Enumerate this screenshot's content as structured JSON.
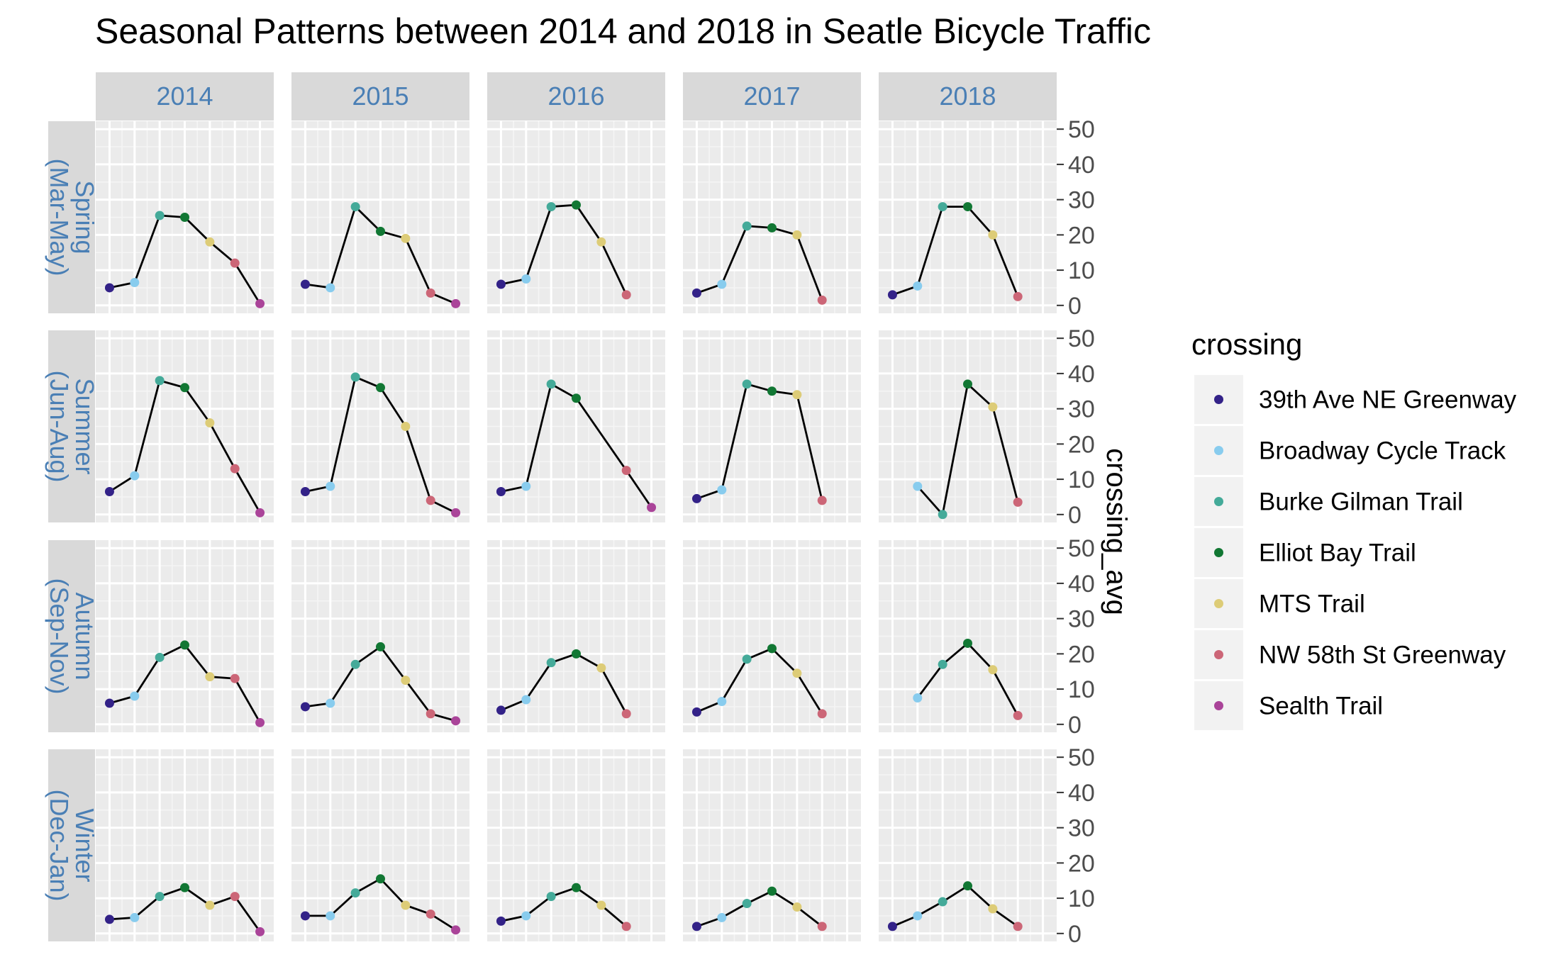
{
  "chart_data": {
    "type": "line",
    "title": "Seasonal Patterns between 2014 and 2018 in Seatle Bicycle Traffic",
    "ylabel": "crossing_avg",
    "xlabel": "",
    "ylim": [
      0,
      50
    ],
    "yticks": [
      0,
      10,
      20,
      30,
      40,
      50
    ],
    "grid": true,
    "legend_title": "crossing",
    "legend_position": "right",
    "years": [
      "2014",
      "2015",
      "2016",
      "2017",
      "2018"
    ],
    "seasons": [
      "Spring\n(Mar-May)",
      "Summer\n(Jun-Aug)",
      "Autumn\n(Sep-Nov)",
      "Winter\n(Dec-Jan)"
    ],
    "crossings": [
      {
        "name": "39th Ave NE Greenway",
        "color": "#332288"
      },
      {
        "name": "Broadway Cycle Track",
        "color": "#88CCEE"
      },
      {
        "name": "Burke Gilman Trail",
        "color": "#44AA99"
      },
      {
        "name": "Elliot Bay Trail",
        "color": "#117733"
      },
      {
        "name": "MTS Trail",
        "color": "#DDCC77"
      },
      {
        "name": "NW 58th St Greenway",
        "color": "#CC6677"
      },
      {
        "name": "Sealth Trail",
        "color": "#AA4499"
      }
    ],
    "panels": [
      [
        [
          5,
          6.5,
          25.5,
          25,
          18,
          12,
          0.5
        ],
        [
          6,
          5,
          28,
          21,
          19,
          3.5,
          0.5
        ],
        [
          6,
          7.5,
          28,
          28.5,
          18,
          3,
          null
        ],
        [
          3.5,
          6,
          22.5,
          22,
          20,
          1.5,
          null
        ],
        [
          3,
          5.5,
          28,
          28,
          20,
          2.5,
          null
        ]
      ],
      [
        [
          6.5,
          11,
          38,
          36,
          26,
          13,
          0.5
        ],
        [
          6.5,
          8,
          39,
          36,
          25,
          4,
          0.5
        ],
        [
          6.5,
          8,
          37,
          33,
          null,
          12.5,
          2
        ],
        [
          4.5,
          7,
          37,
          35,
          34,
          4,
          null
        ],
        [
          null,
          8,
          0,
          37,
          30.5,
          3.5,
          null
        ]
      ],
      [
        [
          6,
          8,
          19,
          22.5,
          13.5,
          13,
          0.5
        ],
        [
          5,
          6,
          17,
          22,
          12.5,
          3,
          1
        ],
        [
          4,
          7,
          17.5,
          20,
          16,
          3,
          null
        ],
        [
          3.5,
          6.5,
          18.5,
          21.5,
          14.5,
          3,
          null
        ],
        [
          null,
          7.5,
          17,
          23,
          15.5,
          2.5,
          null
        ]
      ],
      [
        [
          4,
          4.5,
          10.5,
          13,
          8,
          10.5,
          0.5
        ],
        [
          5,
          5,
          11.5,
          15.5,
          8,
          5.5,
          1
        ],
        [
          3.5,
          5,
          10.5,
          13,
          8,
          2,
          null
        ],
        [
          2,
          4.5,
          8.5,
          12,
          7.5,
          2,
          null
        ],
        [
          2,
          5,
          9,
          13.5,
          7,
          2,
          null
        ]
      ]
    ]
  }
}
